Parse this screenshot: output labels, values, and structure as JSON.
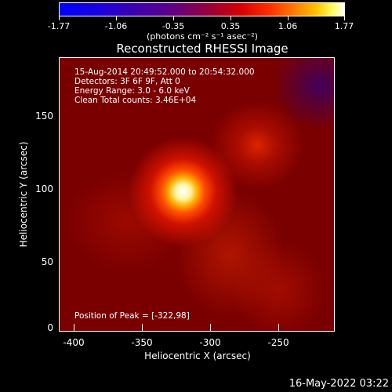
{
  "colorbar": {
    "ticks": [
      "-1.77",
      "-1.06",
      "-0.35",
      "0.35",
      "1.06",
      "1.77"
    ],
    "units": "(photons cm⁻² s⁻¹ asec⁻²)"
  },
  "title": "Reconstructed RHESSI Image",
  "info": {
    "time": "15-Aug-2014 20:49:52.000 to 20:54:32.000",
    "detectors": "Detectors: 3F 6F 9F, Att 0",
    "energy": "Energy Range: 3.0 - 6.0 keV",
    "clean": "Clean     Total counts: 3.46E+04",
    "peak": "Position of Peak = [-322,98]"
  },
  "axes": {
    "xlabel": "Heliocentric X (arcsec)",
    "ylabel": "Heliocentric Y (arcsec)",
    "xticks": [
      "-400",
      "-350",
      "-300",
      "-250"
    ],
    "yticks": [
      "150",
      "100",
      "50",
      "0"
    ]
  },
  "timestamp": "16-May-2022 03:22"
}
